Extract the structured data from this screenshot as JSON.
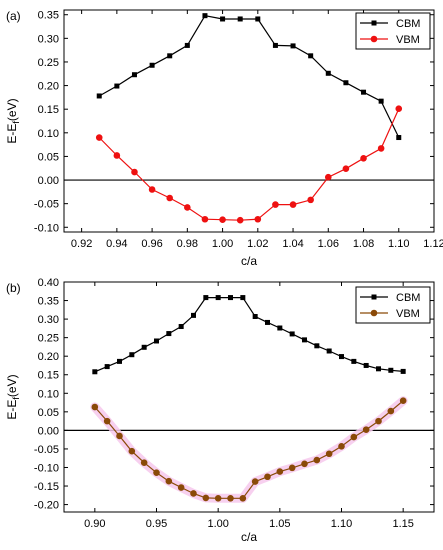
{
  "chart_data": [
    {
      "panel_label": "(a)",
      "type": "line",
      "xlabel": "c/a",
      "ylabel_main": "E-E",
      "ylabel_sub": "f",
      "ylabel_tail": "(eV)",
      "xlim": [
        0.91,
        1.12
      ],
      "ylim": [
        -0.11,
        0.36
      ],
      "x_ticks": [
        0.92,
        0.94,
        0.96,
        0.98,
        1.0,
        1.02,
        1.04,
        1.06,
        1.08,
        1.1,
        1.12
      ],
      "x_tick_labels": [
        "0.92",
        "0.94",
        "0.96",
        "0.98",
        "1.00",
        "1.02",
        "1.04",
        "1.06",
        "1.08",
        "1.10",
        "1.12"
      ],
      "y_ticks": [
        -0.1,
        -0.05,
        0.0,
        0.05,
        0.1,
        0.15,
        0.2,
        0.25,
        0.3,
        0.35
      ],
      "y_tick_labels": [
        "-0.10",
        "-0.05",
        "0.00",
        "0.05",
        "0.10",
        "0.15",
        "0.20",
        "0.25",
        "0.30",
        "0.35"
      ],
      "legend_position": "top-right",
      "zero_line": true,
      "series": [
        {
          "name": "CBM",
          "color": "#000000",
          "marker": "square",
          "x": [
            0.93,
            0.94,
            0.95,
            0.96,
            0.97,
            0.98,
            0.99,
            1.0,
            1.01,
            1.02,
            1.03,
            1.04,
            1.05,
            1.06,
            1.07,
            1.08,
            1.09,
            1.1
          ],
          "y": [
            0.178,
            0.199,
            0.223,
            0.243,
            0.263,
            0.285,
            0.348,
            0.341,
            0.341,
            0.341,
            0.285,
            0.284,
            0.263,
            0.226,
            0.206,
            0.186,
            0.167,
            0.09
          ]
        },
        {
          "name": "VBM",
          "color": "#ee1111",
          "marker": "circle",
          "x": [
            0.93,
            0.94,
            0.95,
            0.96,
            0.97,
            0.98,
            0.99,
            1.0,
            1.01,
            1.02,
            1.03,
            1.04,
            1.05,
            1.06,
            1.07,
            1.08,
            1.09,
            1.1
          ],
          "y": [
            0.09,
            0.052,
            0.017,
            -0.02,
            -0.038,
            -0.058,
            -0.083,
            -0.084,
            -0.085,
            -0.083,
            -0.052,
            -0.052,
            -0.042,
            0.006,
            0.024,
            0.046,
            0.067,
            0.151
          ]
        }
      ]
    },
    {
      "panel_label": "(b)",
      "type": "line",
      "xlabel": "c/a",
      "ylabel_main": "E-E",
      "ylabel_sub": "f",
      "ylabel_tail": "(eV)",
      "xlim": [
        0.875,
        1.175
      ],
      "ylim": [
        -0.22,
        0.4
      ],
      "x_ticks": [
        0.9,
        0.95,
        1.0,
        1.05,
        1.1,
        1.15
      ],
      "x_tick_labels": [
        "0.90",
        "0.95",
        "1.00",
        "1.05",
        "1.10",
        "1.15"
      ],
      "y_ticks": [
        -0.2,
        -0.15,
        -0.1,
        -0.05,
        0.0,
        0.05,
        0.1,
        0.15,
        0.2,
        0.25,
        0.3,
        0.35,
        0.4
      ],
      "y_tick_labels": [
        "-0.20",
        "-0.15",
        "-0.10",
        "-0.05",
        "0.00",
        "0.05",
        "0.10",
        "0.15",
        "0.20",
        "0.25",
        "0.30",
        "0.35",
        "0.40"
      ],
      "legend_position": "top-right",
      "zero_line": true,
      "series": [
        {
          "name": "CBM",
          "color": "#000000",
          "marker": "square",
          "x": [
            0.9,
            0.91,
            0.92,
            0.93,
            0.94,
            0.95,
            0.96,
            0.97,
            0.98,
            0.99,
            1.0,
            1.01,
            1.02,
            1.03,
            1.04,
            1.05,
            1.06,
            1.07,
            1.08,
            1.09,
            1.1,
            1.11,
            1.12,
            1.13,
            1.14,
            1.15
          ],
          "y": [
            0.158,
            0.172,
            0.186,
            0.204,
            0.224,
            0.241,
            0.261,
            0.28,
            0.31,
            0.358,
            0.358,
            0.358,
            0.358,
            0.307,
            0.291,
            0.276,
            0.26,
            0.244,
            0.228,
            0.214,
            0.199,
            0.186,
            0.175,
            0.166,
            0.162,
            0.159
          ]
        },
        {
          "name": "VBM",
          "color": "#8a4a08",
          "marker": "circle",
          "x": [
            0.9,
            0.91,
            0.92,
            0.93,
            0.94,
            0.95,
            0.96,
            0.97,
            0.98,
            0.99,
            1.0,
            1.01,
            1.02,
            1.03,
            1.04,
            1.05,
            1.06,
            1.07,
            1.08,
            1.09,
            1.1,
            1.11,
            1.12,
            1.13,
            1.14,
            1.15
          ],
          "y": [
            0.063,
            0.025,
            -0.015,
            -0.056,
            -0.087,
            -0.114,
            -0.137,
            -0.154,
            -0.17,
            -0.182,
            -0.183,
            -0.183,
            -0.183,
            -0.138,
            -0.125,
            -0.111,
            -0.101,
            -0.09,
            -0.08,
            -0.063,
            -0.043,
            -0.018,
            0.002,
            0.025,
            0.052,
            0.08
          ]
        }
      ]
    }
  ]
}
